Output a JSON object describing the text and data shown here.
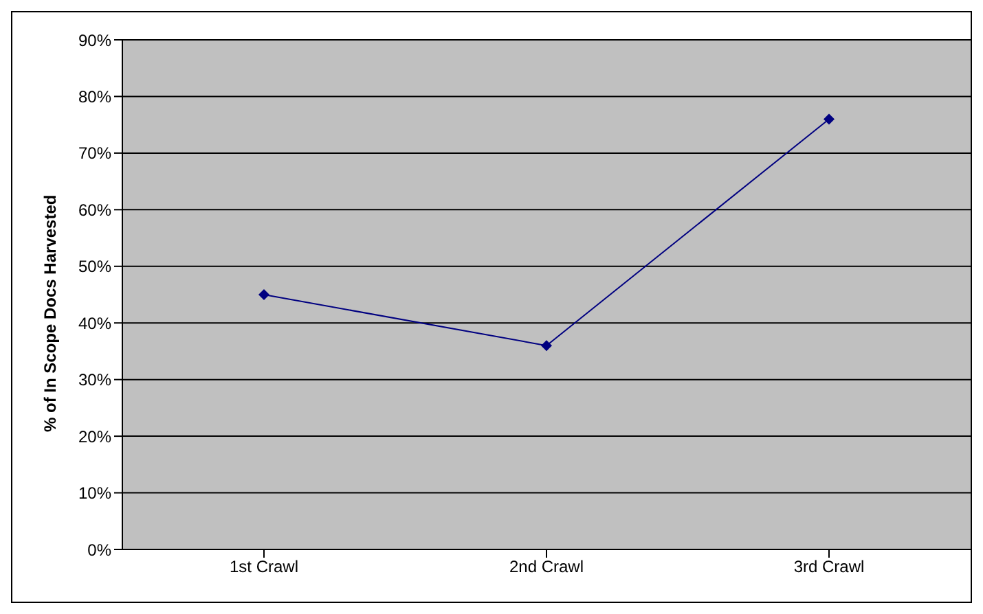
{
  "chart_data": {
    "type": "line",
    "ylabel": "% of In Scope Docs Harvested",
    "categories": [
      "1st Crawl",
      "2nd Crawl",
      "3rd Crawl"
    ],
    "series": [
      {
        "color": "#000080",
        "values": [
          45,
          36,
          76
        ]
      }
    ],
    "ylim": [
      0,
      90
    ],
    "yticks": [
      {
        "value": 0,
        "label": "0%"
      },
      {
        "value": 10,
        "label": "10%"
      },
      {
        "value": 20,
        "label": "20%"
      },
      {
        "value": 30,
        "label": "30%"
      },
      {
        "value": 40,
        "label": "40%"
      },
      {
        "value": 50,
        "label": "50%"
      },
      {
        "value": 60,
        "label": "60%"
      },
      {
        "value": 70,
        "label": "70%"
      },
      {
        "value": 80,
        "label": "80%"
      },
      {
        "value": 90,
        "label": "90%"
      }
    ],
    "grid": "y",
    "legend": false,
    "marker": "diamond",
    "line_style": "solid"
  }
}
